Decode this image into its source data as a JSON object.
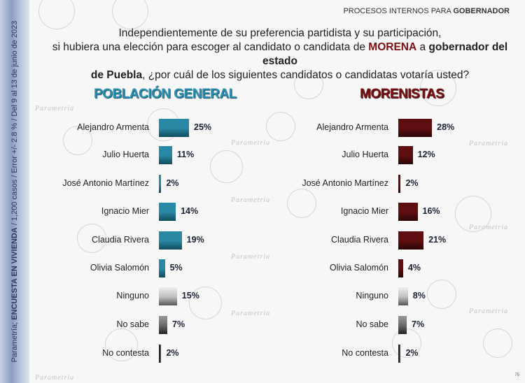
{
  "header": {
    "prefix": "PROCESOS INTERNOS PARA ",
    "bold": "GOBERNADOR"
  },
  "question": {
    "line1": "Independientemente de su preferencia partidista y su participación,",
    "line2a": "si hubiera una elección para escoger al candidato o candidata de ",
    "line2b": "MORENA",
    "line2c": " a ",
    "line2d": "gobernador del estado",
    "line3a": "de Puebla",
    "line3b": ", ¿por cuál de los siguientes candidatos o candidatas votaría usted?"
  },
  "sidebar": {
    "prefix": "Parametría; ",
    "bold": "ENCUESTA EN VIVIENDA",
    "rest": " / 1,200 casos / Error +/- 2.8 % / Del 9 al 13 de junio de 2023"
  },
  "watermark": "Parametria",
  "page_number": "75",
  "colors": {
    "general": "#2a8aa6",
    "morenistas": "#5e0e10",
    "ninguno": "#bdbdbd",
    "no_sabe": "#6e6e6e",
    "no_contesta": "#111111"
  },
  "chart_data": [
    {
      "type": "bar",
      "orientation": "horizontal",
      "title": "POBLACIÓN GENERAL",
      "categories": [
        "Alejandro Armenta",
        "Julio Huerta",
        "José Antonio Martínez",
        "Ignacio Mier",
        "Claudia Rivera",
        "Olivia Salomón",
        "Ninguno",
        "No sabe",
        "No contesta"
      ],
      "values": [
        25,
        11,
        2,
        14,
        19,
        5,
        15,
        7,
        2
      ],
      "data_labels": [
        "25%",
        "11%",
        "2%",
        "14%",
        "19%",
        "5%",
        "15%",
        "7%",
        "2%"
      ]
    },
    {
      "type": "bar",
      "orientation": "horizontal",
      "title": "MORENISTAS",
      "categories": [
        "Alejandro Armenta",
        "Julio Huerta",
        "José Antonio Martínez",
        "Ignacio Mier",
        "Claudia Rivera",
        "Olivia Salomón",
        "Ninguno",
        "No sabe",
        "No contesta"
      ],
      "values": [
        28,
        12,
        2,
        16,
        21,
        4,
        8,
        7,
        2
      ],
      "data_labels": [
        "28%",
        "12%",
        "2%",
        "16%",
        "21%",
        "4%",
        "8%",
        "7%",
        "2%"
      ]
    }
  ]
}
